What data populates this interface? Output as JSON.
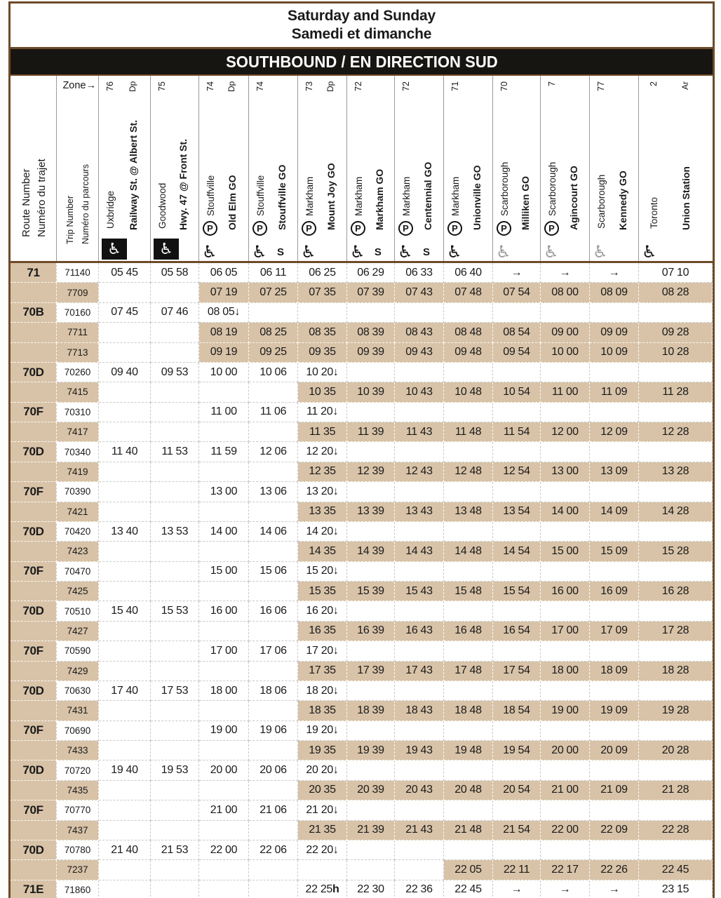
{
  "colors": {
    "shade_tan": "#d8c3a8",
    "frame_brown": "#6e4a28",
    "banner_black": "#171512",
    "gray_icon": "#9b9b9b"
  },
  "title": {
    "line1": "Saturday and Sunday",
    "line2": "Samedi et dimanche"
  },
  "banner": "SOUTHBOUND / EN DIRECTION SUD",
  "header": {
    "route_label_en": "Route Number",
    "route_label_fr": "Numéro du trajet",
    "trip_label_en": "Trip Number",
    "trip_label_fr": "Numéro du parcours",
    "zone_label": "Zone→",
    "legend": {
      "parking_icon": "P",
      "accessible_icon": "wheelchair",
      "s_mark": "S"
    },
    "stations": [
      {
        "city": "Uxbridge",
        "zone": "76",
        "name": "Railway St. @ Albert St.",
        "marker": "Dp",
        "parking": false,
        "access": "black-box",
        "s": false
      },
      {
        "city": "Goodwood",
        "zone": "75",
        "name": "Hwy. 47 @ Front St.",
        "marker": "",
        "parking": false,
        "access": "black-box",
        "s": false
      },
      {
        "city": "Stouffville",
        "zone": "74",
        "name": "Old Elm GO",
        "marker": "Dp",
        "parking": true,
        "access": "black",
        "s": false
      },
      {
        "city": "Stouffville",
        "zone": "74",
        "name": "Stouffville GO",
        "marker": "",
        "parking": true,
        "access": "black",
        "s": true
      },
      {
        "city": "Markham",
        "zone": "73",
        "name": "Mount Joy GO",
        "marker": "Dp",
        "parking": true,
        "access": "black",
        "s": false
      },
      {
        "city": "Markham",
        "zone": "72",
        "name": "Markham GO",
        "marker": "",
        "parking": true,
        "access": "black",
        "s": true
      },
      {
        "city": "Markham",
        "zone": "72",
        "name": "Centennial GO",
        "marker": "",
        "parking": true,
        "access": "black",
        "s": true
      },
      {
        "city": "Markham",
        "zone": "71",
        "name": "Unionville GO",
        "marker": "",
        "parking": true,
        "access": "black",
        "s": false
      },
      {
        "city": "Scarborough",
        "zone": "70",
        "name": "Milliken GO",
        "marker": "",
        "parking": true,
        "access": "gray",
        "s": false
      },
      {
        "city": "Scarborough",
        "zone": "7",
        "name": "Agincourt GO",
        "marker": "",
        "parking": true,
        "access": "gray",
        "s": false
      },
      {
        "city": "Scarborough",
        "zone": "77",
        "name": "Kennedy GO",
        "marker": "",
        "parking": false,
        "access": "gray",
        "s": false
      },
      {
        "city": "Toronto",
        "zone": "2",
        "name": "Union Station",
        "marker": "Ar",
        "parking": false,
        "access": "black",
        "s": false
      }
    ]
  },
  "rows": [
    {
      "route": "71",
      "trip": "71140",
      "shaded": false,
      "shade_from": -1,
      "times": [
        "05 45",
        "05 58",
        "06 05",
        "06 11",
        "06 25",
        "06 29",
        "06 33",
        "06 40",
        "→",
        "→",
        "→",
        "07 10"
      ]
    },
    {
      "route": "",
      "trip": "7709",
      "shaded": true,
      "shade_from": 2,
      "times": [
        "",
        "",
        "07 19",
        "07 25",
        "07 35",
        "07 39",
        "07 43",
        "07 48",
        "07 54",
        "08 00",
        "08 09",
        "08 28"
      ]
    },
    {
      "route": "70B",
      "trip": "70160",
      "shaded": false,
      "shade_from": -1,
      "times": [
        "07 45",
        "07 46",
        "08 05↓",
        "",
        "",
        "",
        "",
        "",
        "",
        "",
        "",
        ""
      ]
    },
    {
      "route": "",
      "trip": "7711",
      "shaded": true,
      "shade_from": 2,
      "times": [
        "",
        "",
        "08 19",
        "08 25",
        "08 35",
        "08 39",
        "08 43",
        "08 48",
        "08 54",
        "09 00",
        "09 09",
        "09 28"
      ]
    },
    {
      "route": "",
      "trip": "7713",
      "shaded": true,
      "shade_from": 2,
      "times": [
        "",
        "",
        "09 19",
        "09 25",
        "09 35",
        "09 39",
        "09 43",
        "09 48",
        "09 54",
        "10 00",
        "10 09",
        "10 28"
      ]
    },
    {
      "route": "70D",
      "trip": "70260",
      "shaded": false,
      "shade_from": -1,
      "times": [
        "09 40",
        "09 53",
        "10 00",
        "10 06",
        "10 20↓",
        "",
        "",
        "",
        "",
        "",
        "",
        ""
      ]
    },
    {
      "route": "",
      "trip": "7415",
      "shaded": true,
      "shade_from": 4,
      "times": [
        "",
        "",
        "",
        "",
        "10 35",
        "10 39",
        "10 43",
        "10 48",
        "10 54",
        "11 00",
        "11 09",
        "11 28"
      ]
    },
    {
      "route": "70F",
      "trip": "70310",
      "shaded": false,
      "shade_from": -1,
      "times": [
        "",
        "",
        "11 00",
        "11 06",
        "11 20↓",
        "",
        "",
        "",
        "",
        "",
        "",
        ""
      ]
    },
    {
      "route": "",
      "trip": "7417",
      "shaded": true,
      "shade_from": 4,
      "times": [
        "",
        "",
        "",
        "",
        "11 35",
        "11 39",
        "11 43",
        "11 48",
        "11 54",
        "12 00",
        "12 09",
        "12 28"
      ]
    },
    {
      "route": "70D",
      "trip": "70340",
      "shaded": false,
      "shade_from": -1,
      "times": [
        "11 40",
        "11 53",
        "11 59",
        "12 06",
        "12 20↓",
        "",
        "",
        "",
        "",
        "",
        "",
        ""
      ]
    },
    {
      "route": "",
      "trip": "7419",
      "shaded": true,
      "shade_from": 4,
      "times": [
        "",
        "",
        "",
        "",
        "12 35",
        "12 39",
        "12 43",
        "12 48",
        "12 54",
        "13 00",
        "13 09",
        "13 28"
      ]
    },
    {
      "route": "70F",
      "trip": "70390",
      "shaded": false,
      "shade_from": -1,
      "times": [
        "",
        "",
        "13 00",
        "13 06",
        "13 20↓",
        "",
        "",
        "",
        "",
        "",
        "",
        ""
      ]
    },
    {
      "route": "",
      "trip": "7421",
      "shaded": true,
      "shade_from": 4,
      "times": [
        "",
        "",
        "",
        "",
        "13 35",
        "13 39",
        "13 43",
        "13 48",
        "13 54",
        "14 00",
        "14 09",
        "14 28"
      ]
    },
    {
      "route": "70D",
      "trip": "70420",
      "shaded": false,
      "shade_from": -1,
      "times": [
        "13 40",
        "13 53",
        "14 00",
        "14 06",
        "14 20↓",
        "",
        "",
        "",
        "",
        "",
        "",
        ""
      ]
    },
    {
      "route": "",
      "trip": "7423",
      "shaded": true,
      "shade_from": 4,
      "times": [
        "",
        "",
        "",
        "",
        "14 35",
        "14 39",
        "14 43",
        "14 48",
        "14 54",
        "15 00",
        "15 09",
        "15 28"
      ]
    },
    {
      "route": "70F",
      "trip": "70470",
      "shaded": false,
      "shade_from": -1,
      "times": [
        "",
        "",
        "15 00",
        "15 06",
        "15 20↓",
        "",
        "",
        "",
        "",
        "",
        "",
        ""
      ]
    },
    {
      "route": "",
      "trip": "7425",
      "shaded": true,
      "shade_from": 4,
      "times": [
        "",
        "",
        "",
        "",
        "15 35",
        "15 39",
        "15 43",
        "15 48",
        "15 54",
        "16 00",
        "16 09",
        "16 28"
      ]
    },
    {
      "route": "70D",
      "trip": "70510",
      "shaded": false,
      "shade_from": -1,
      "times": [
        "15 40",
        "15 53",
        "16 00",
        "16 06",
        "16 20↓",
        "",
        "",
        "",
        "",
        "",
        "",
        ""
      ]
    },
    {
      "route": "",
      "trip": "7427",
      "shaded": true,
      "shade_from": 4,
      "times": [
        "",
        "",
        "",
        "",
        "16 35",
        "16 39",
        "16 43",
        "16 48",
        "16 54",
        "17 00",
        "17 09",
        "17 28"
      ]
    },
    {
      "route": "70F",
      "trip": "70590",
      "shaded": false,
      "shade_from": -1,
      "times": [
        "",
        "",
        "17 00",
        "17 06",
        "17 20↓",
        "",
        "",
        "",
        "",
        "",
        "",
        ""
      ]
    },
    {
      "route": "",
      "trip": "7429",
      "shaded": true,
      "shade_from": 4,
      "times": [
        "",
        "",
        "",
        "",
        "17 35",
        "17 39",
        "17 43",
        "17 48",
        "17 54",
        "18 00",
        "18 09",
        "18 28"
      ]
    },
    {
      "route": "70D",
      "trip": "70630",
      "shaded": false,
      "shade_from": -1,
      "times": [
        "17 40",
        "17 53",
        "18 00",
        "18 06",
        "18 20↓",
        "",
        "",
        "",
        "",
        "",
        "",
        ""
      ]
    },
    {
      "route": "",
      "trip": "7431",
      "shaded": true,
      "shade_from": 4,
      "times": [
        "",
        "",
        "",
        "",
        "18 35",
        "18 39",
        "18 43",
        "18 48",
        "18 54",
        "19 00",
        "19 09",
        "19 28"
      ]
    },
    {
      "route": "70F",
      "trip": "70690",
      "shaded": false,
      "shade_from": -1,
      "times": [
        "",
        "",
        "19 00",
        "19 06",
        "19 20↓",
        "",
        "",
        "",
        "",
        "",
        "",
        ""
      ]
    },
    {
      "route": "",
      "trip": "7433",
      "shaded": true,
      "shade_from": 4,
      "times": [
        "",
        "",
        "",
        "",
        "19 35",
        "19 39",
        "19 43",
        "19 48",
        "19 54",
        "20 00",
        "20 09",
        "20 28"
      ]
    },
    {
      "route": "70D",
      "trip": "70720",
      "shaded": false,
      "shade_from": -1,
      "times": [
        "19 40",
        "19 53",
        "20 00",
        "20 06",
        "20 20↓",
        "",
        "",
        "",
        "",
        "",
        "",
        ""
      ]
    },
    {
      "route": "",
      "trip": "7435",
      "shaded": true,
      "shade_from": 4,
      "times": [
        "",
        "",
        "",
        "",
        "20 35",
        "20 39",
        "20 43",
        "20 48",
        "20 54",
        "21 00",
        "21 09",
        "21 28"
      ]
    },
    {
      "route": "70F",
      "trip": "70770",
      "shaded": false,
      "shade_from": -1,
      "times": [
        "",
        "",
        "21 00",
        "21 06",
        "21 20↓",
        "",
        "",
        "",
        "",
        "",
        "",
        ""
      ]
    },
    {
      "route": "",
      "trip": "7437",
      "shaded": true,
      "shade_from": 4,
      "times": [
        "",
        "",
        "",
        "",
        "21 35",
        "21 39",
        "21 43",
        "21 48",
        "21 54",
        "22 00",
        "22 09",
        "22 28"
      ]
    },
    {
      "route": "70D",
      "trip": "70780",
      "shaded": false,
      "shade_from": -1,
      "times": [
        "21 40",
        "21 53",
        "22 00",
        "22 06",
        "22 20↓",
        "",
        "",
        "",
        "",
        "",
        "",
        ""
      ]
    },
    {
      "route": "",
      "trip": "7237",
      "shaded": true,
      "shade_from": 7,
      "times": [
        "",
        "",
        "",
        "",
        "",
        "",
        "",
        "22 05",
        "22 11",
        "22 17",
        "22 26",
        "22 45"
      ]
    },
    {
      "route": "71E",
      "trip": "71860",
      "shaded": false,
      "shade_from": -1,
      "times": [
        "",
        "",
        "",
        "",
        "22 25h",
        "22 30",
        "22 36",
        "22 45",
        "→",
        "→",
        "→",
        "23 15"
      ]
    }
  ]
}
